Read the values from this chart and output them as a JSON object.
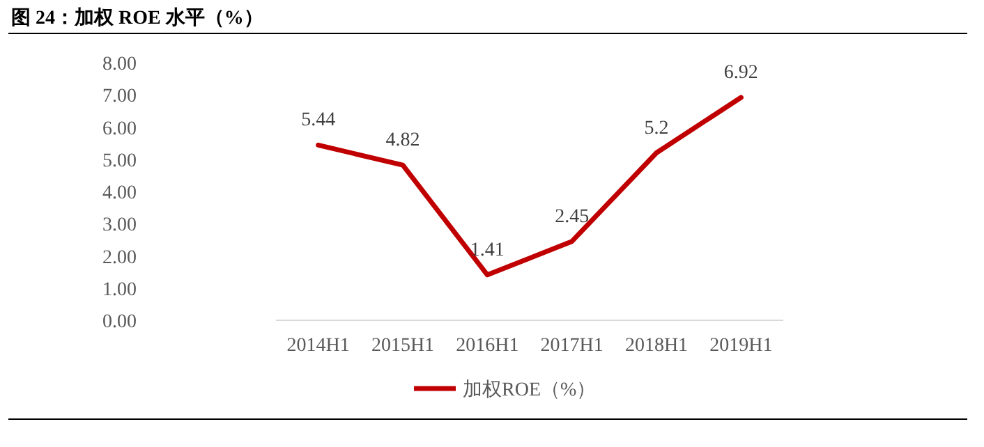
{
  "chart_data": {
    "type": "line",
    "title": "图 24：加权 ROE 水平（%）",
    "categories": [
      "2014H1",
      "2015H1",
      "2016H1",
      "2017H1",
      "2018H1",
      "2019H1"
    ],
    "series": [
      {
        "name": "加权ROE（%）",
        "color": "#c00000",
        "values": [
          5.44,
          4.82,
          1.41,
          2.45,
          5.2,
          6.92
        ]
      }
    ],
    "ylim": [
      0,
      8
    ],
    "yticks": [
      {
        "value": 0,
        "label": "0.00"
      },
      {
        "value": 1,
        "label": "1.00"
      },
      {
        "value": 2,
        "label": "2.00"
      },
      {
        "value": 3,
        "label": "3.00"
      },
      {
        "value": 4,
        "label": "4.00"
      },
      {
        "value": 5,
        "label": "5.00"
      },
      {
        "value": 6,
        "label": "6.00"
      },
      {
        "value": 7,
        "label": "7.00"
      },
      {
        "value": 8,
        "label": "8.00"
      }
    ],
    "data_labels": true,
    "legend": "bottom",
    "grid": false,
    "marker": "none",
    "line_style": "solid"
  }
}
